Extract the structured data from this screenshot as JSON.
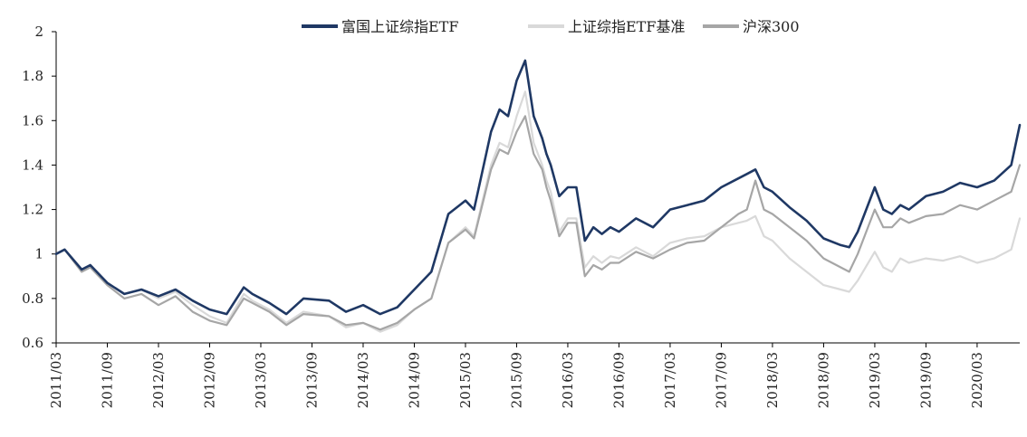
{
  "chart_data": {
    "type": "line",
    "title": "",
    "xlabel": "",
    "ylabel": "",
    "ylim": [
      0.6,
      2.0
    ],
    "yticks": [
      0.6,
      0.8,
      1.0,
      1.2,
      1.4,
      1.6,
      1.8,
      2.0
    ],
    "ytick_labels": [
      "0.6",
      "0.8",
      "1",
      "1.2",
      "1.4",
      "1.6",
      "1.8",
      "2"
    ],
    "xlim": [
      0,
      113
    ],
    "xticks": [
      0,
      6,
      12,
      18,
      24,
      30,
      36,
      42,
      48,
      54,
      60,
      66,
      72,
      78,
      84,
      90,
      96,
      102,
      108
    ],
    "xtick_labels": [
      "2011/03",
      "2011/09",
      "2012/03",
      "2012/09",
      "2013/03",
      "2013/09",
      "2014/03",
      "2014/09",
      "2015/03",
      "2015/09",
      "2016/03",
      "2016/09",
      "2017/03",
      "2017/09",
      "2018/03",
      "2018/09",
      "2019/03",
      "2019/09",
      "2020/03"
    ],
    "legend_position": "top-center",
    "series": [
      {
        "name": "富国上证综指ETF",
        "color": "#1f3864",
        "x": [
          0,
          1,
          3,
          4,
          6,
          8,
          10,
          12,
          14,
          16,
          18,
          20,
          22,
          23,
          25,
          27,
          29,
          32,
          34,
          36,
          38,
          40,
          42,
          44,
          46,
          48,
          49,
          51,
          52,
          53,
          54,
          55,
          56,
          57,
          57.5,
          58,
          59,
          60,
          61,
          62,
          63,
          64,
          65,
          66,
          68,
          70,
          72,
          74,
          76,
          78,
          80,
          81,
          82,
          83,
          84,
          86,
          88,
          90,
          92,
          93,
          94,
          96,
          97,
          98,
          99,
          100,
          102,
          104,
          106,
          108,
          110,
          112,
          113
        ],
        "values": [
          1.0,
          1.02,
          0.93,
          0.95,
          0.87,
          0.82,
          0.84,
          0.81,
          0.84,
          0.79,
          0.75,
          0.73,
          0.85,
          0.82,
          0.78,
          0.73,
          0.8,
          0.79,
          0.74,
          0.77,
          0.73,
          0.76,
          0.84,
          0.92,
          1.18,
          1.24,
          1.2,
          1.55,
          1.65,
          1.62,
          1.78,
          1.87,
          1.62,
          1.52,
          1.45,
          1.4,
          1.26,
          1.3,
          1.3,
          1.06,
          1.12,
          1.09,
          1.12,
          1.1,
          1.16,
          1.12,
          1.2,
          1.22,
          1.24,
          1.3,
          1.34,
          1.36,
          1.38,
          1.3,
          1.28,
          1.21,
          1.15,
          1.07,
          1.04,
          1.03,
          1.1,
          1.3,
          1.2,
          1.18,
          1.22,
          1.2,
          1.26,
          1.28,
          1.32,
          1.3,
          1.33,
          1.4,
          1.58
        ]
      },
      {
        "name": "上证综指ETF基准",
        "color": "#d9d9d9",
        "x": [
          0,
          1,
          3,
          4,
          6,
          8,
          10,
          12,
          14,
          16,
          18,
          20,
          22,
          23,
          25,
          27,
          29,
          32,
          34,
          36,
          38,
          40,
          42,
          44,
          46,
          48,
          49,
          51,
          52,
          53,
          54,
          55,
          56,
          57,
          57.5,
          58,
          59,
          60,
          61,
          62,
          63,
          64,
          65,
          66,
          68,
          70,
          72,
          74,
          76,
          78,
          80,
          81,
          82,
          83,
          84,
          86,
          88,
          90,
          92,
          93,
          94,
          96,
          97,
          98,
          99,
          100,
          102,
          104,
          106,
          108,
          110,
          112,
          113
        ],
        "values": [
          1.0,
          1.02,
          0.93,
          0.95,
          0.87,
          0.82,
          0.84,
          0.8,
          0.83,
          0.77,
          0.72,
          0.69,
          0.82,
          0.79,
          0.75,
          0.69,
          0.74,
          0.72,
          0.67,
          0.69,
          0.65,
          0.68,
          0.75,
          0.8,
          1.05,
          1.12,
          1.08,
          1.4,
          1.5,
          1.48,
          1.62,
          1.73,
          1.5,
          1.4,
          1.33,
          1.28,
          1.1,
          1.16,
          1.16,
          0.94,
          0.99,
          0.96,
          0.99,
          0.98,
          1.03,
          0.99,
          1.05,
          1.07,
          1.08,
          1.12,
          1.14,
          1.15,
          1.17,
          1.08,
          1.06,
          0.98,
          0.92,
          0.86,
          0.84,
          0.83,
          0.88,
          1.01,
          0.94,
          0.92,
          0.98,
          0.96,
          0.98,
          0.97,
          0.99,
          0.96,
          0.98,
          1.02,
          1.16
        ]
      },
      {
        "name": "沪深300",
        "color": "#a6a6a6",
        "x": [
          0,
          1,
          3,
          4,
          6,
          8,
          10,
          12,
          14,
          16,
          18,
          20,
          22,
          23,
          25,
          27,
          29,
          32,
          34,
          36,
          38,
          40,
          42,
          44,
          46,
          48,
          49,
          51,
          52,
          53,
          54,
          55,
          56,
          57,
          57.5,
          58,
          59,
          60,
          61,
          62,
          63,
          64,
          65,
          66,
          68,
          70,
          72,
          74,
          76,
          78,
          80,
          81,
          82,
          83,
          84,
          86,
          88,
          90,
          92,
          93,
          94,
          96,
          97,
          98,
          99,
          100,
          102,
          104,
          106,
          108,
          110,
          112,
          113
        ],
        "values": [
          1.0,
          1.02,
          0.92,
          0.94,
          0.86,
          0.8,
          0.82,
          0.77,
          0.81,
          0.74,
          0.7,
          0.68,
          0.8,
          0.78,
          0.74,
          0.68,
          0.73,
          0.72,
          0.68,
          0.69,
          0.66,
          0.69,
          0.75,
          0.8,
          1.05,
          1.11,
          1.07,
          1.38,
          1.47,
          1.45,
          1.55,
          1.62,
          1.45,
          1.38,
          1.3,
          1.24,
          1.08,
          1.14,
          1.14,
          0.9,
          0.95,
          0.93,
          0.96,
          0.96,
          1.01,
          0.98,
          1.02,
          1.05,
          1.06,
          1.12,
          1.18,
          1.2,
          1.33,
          1.2,
          1.18,
          1.12,
          1.06,
          0.98,
          0.94,
          0.92,
          1.0,
          1.2,
          1.12,
          1.12,
          1.16,
          1.14,
          1.17,
          1.18,
          1.22,
          1.2,
          1.24,
          1.28,
          1.4
        ]
      }
    ]
  }
}
